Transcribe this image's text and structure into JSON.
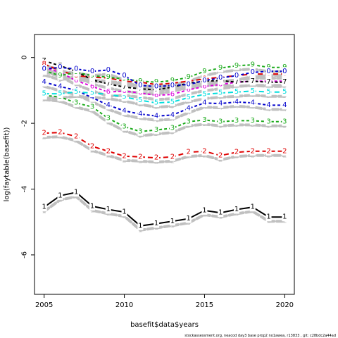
{
  "footer": "stockassessment.org, neacod day3 base prop2 no1awea, r13833 , git: c28bdc2a44ad",
  "chart_data": {
    "type": "line",
    "xlabel": "basefit$data$years",
    "ylabel": "log(faytable(basefit))",
    "xlim": [
      2004.4,
      2020.6
    ],
    "ylim": [
      -7.2,
      0.7
    ],
    "xticks": [
      2005,
      2010,
      2015,
      2020
    ],
    "yticks": [
      0,
      -2,
      -4,
      -6
    ],
    "x": [
      2005,
      2006,
      2007,
      2008,
      2009,
      2010,
      2011,
      2012,
      2013,
      2014,
      2015,
      2016,
      2017,
      2018,
      2019,
      2020
    ],
    "series": [
      {
        "label": "1",
        "color": "#000000",
        "values": [
          -4.55,
          -4.2,
          -4.1,
          -4.52,
          -4.62,
          -4.7,
          -5.12,
          -5.05,
          -4.98,
          -4.9,
          -4.65,
          -4.72,
          -4.62,
          -4.55,
          -4.85,
          -4.85
        ]
      },
      {
        "label": "2",
        "color": "#df0000",
        "values": [
          -2.3,
          -2.28,
          -2.4,
          -2.7,
          -2.85,
          -3.0,
          -3.02,
          -3.05,
          -3.02,
          -2.88,
          -2.85,
          -2.98,
          -2.88,
          -2.85,
          -2.85,
          -2.85
        ]
      },
      {
        "label": "3",
        "color": "#1aaa1a",
        "values": [
          -1.15,
          -1.2,
          -1.38,
          -1.5,
          -1.85,
          -2.1,
          -2.25,
          -2.2,
          -2.15,
          -1.95,
          -1.9,
          -1.95,
          -1.92,
          -1.92,
          -1.95,
          -1.95
        ]
      },
      {
        "label": "4",
        "color": "#0000cc",
        "values": [
          -0.75,
          -0.88,
          -1.0,
          -1.22,
          -1.45,
          -1.62,
          -1.72,
          -1.78,
          -1.75,
          -1.55,
          -1.38,
          -1.4,
          -1.35,
          -1.38,
          -1.45,
          -1.45
        ]
      },
      {
        "label": "5",
        "color": "#00dddd",
        "values": [
          -1.1,
          -1.1,
          -1.05,
          -1.08,
          -1.12,
          -1.2,
          -1.3,
          -1.38,
          -1.35,
          -1.22,
          -1.12,
          -1.08,
          -1.05,
          -1.02,
          -1.05,
          -1.05
        ]
      },
      {
        "label": "6",
        "color": "#dd00dd",
        "values": [
          -0.3,
          -0.45,
          -0.7,
          -0.88,
          -1.05,
          -1.02,
          -1.08,
          -1.15,
          -1.12,
          -0.98,
          -0.88,
          -0.82,
          -0.75,
          -0.72,
          -0.72,
          -0.72
        ]
      },
      {
        "label": "7",
        "color": "#000000",
        "values": [
          -0.1,
          -0.25,
          -0.42,
          -0.68,
          -0.8,
          -0.9,
          -0.95,
          -0.98,
          -0.9,
          -0.78,
          -0.72,
          -0.7,
          -0.75,
          -0.72,
          -0.75,
          -0.75
        ]
      },
      {
        "label": "8",
        "color": "#df0000",
        "values": [
          -0.2,
          -0.4,
          -0.55,
          -0.6,
          -0.62,
          -0.72,
          -0.75,
          -0.82,
          -0.78,
          -0.72,
          -0.65,
          -0.6,
          -0.55,
          -0.5,
          -0.5,
          -0.5
        ]
      },
      {
        "label": "9",
        "color": "#1aaa1a",
        "values": [
          -0.4,
          -0.55,
          -0.45,
          -0.55,
          -0.6,
          -0.65,
          -0.72,
          -0.75,
          -0.7,
          -0.6,
          -0.42,
          -0.32,
          -0.25,
          -0.22,
          -0.3,
          -0.3
        ]
      },
      {
        "label": "0",
        "color": "#0000cc",
        "values": [
          -0.35,
          -0.3,
          -0.35,
          -0.42,
          -0.38,
          -0.55,
          -0.85,
          -0.88,
          -0.85,
          -0.82,
          -0.7,
          -0.62,
          -0.55,
          -0.45,
          -0.42,
          -0.42
        ]
      }
    ],
    "shadow_color": "#c0c0c0"
  }
}
